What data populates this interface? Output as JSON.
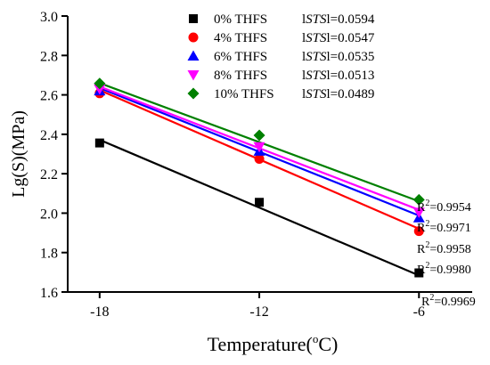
{
  "chart_data": {
    "type": "scatter",
    "xlabel": "Temperature(°C)",
    "xlabel_main": "Temperature(",
    "xlabel_sup": "o",
    "xlabel_end": "C)",
    "ylabel": "Lg(S)(MPa)",
    "x_ticks": [
      -18,
      -12,
      -6
    ],
    "y_ticks": [
      "1.6",
      "1.8",
      "2.0",
      "2.2",
      "2.4",
      "2.6",
      "2.8",
      "3.0"
    ],
    "xlim": [
      -19.2,
      -4.0
    ],
    "ylim": [
      1.6,
      3.0
    ],
    "grid": false,
    "legend_position": "top-right",
    "series": [
      {
        "name": "0% THFS",
        "sts": "0.0594",
        "color": "#000000",
        "marker": "square",
        "x": [
          -18,
          -12,
          -6
        ],
        "y": [
          2.356,
          2.055,
          1.697
        ],
        "fit": [
          2.372,
          1.684
        ],
        "r2": "0.9969"
      },
      {
        "name": "4% THFS",
        "sts": "0.0547",
        "color": "#ff0000",
        "marker": "circle",
        "x": [
          -18,
          -12,
          -6
        ],
        "y": [
          2.608,
          2.275,
          1.909
        ],
        "fit": [
          2.624,
          1.921
        ],
        "r2": "0.9980"
      },
      {
        "name": "6% THFS",
        "sts": "0.0535",
        "color": "#0000ff",
        "marker": "triangle-up",
        "x": [
          -18,
          -12,
          -6
        ],
        "y": [
          2.62,
          2.314,
          1.976
        ],
        "fit": [
          2.635,
          1.988
        ],
        "r2": "0.9958"
      },
      {
        "name": "8% THFS",
        "sts": "0.0513",
        "color": "#ff00ff",
        "marker": "triangle-down",
        "x": [
          -18,
          -12,
          -6
        ],
        "y": [
          2.63,
          2.337,
          2.005
        ],
        "fit": [
          2.642,
          2.017
        ],
        "r2": "0.9971"
      },
      {
        "name": "10% THFS",
        "sts": "0.0489",
        "color": "#008000",
        "marker": "diamond",
        "x": [
          -18,
          -12,
          -6
        ],
        "y": [
          2.658,
          2.395,
          2.068
        ],
        "fit": [
          2.66,
          2.06
        ],
        "r2": "0.9954"
      }
    ]
  },
  "legend": {
    "sts_prefix": "l",
    "sts_italic": "STS",
    "sts_suffix": "l=",
    "r2_prefix": "R",
    "r2_sup": "2",
    "r2_eq": "="
  }
}
